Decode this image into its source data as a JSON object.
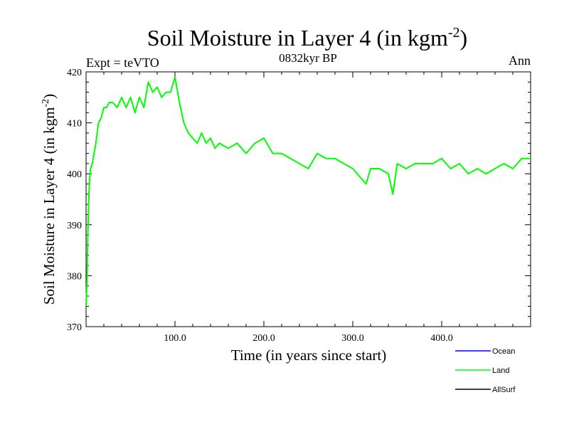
{
  "chart_data": {
    "type": "line",
    "title": "Soil Moisture in Layer 4 (in kgm",
    "title_sup": "-2",
    "title_close": ")",
    "subtitle": "0832kyr BP",
    "left_label": "Expt = teVTO",
    "right_label": "Ann",
    "xlabel": "Time (in years since start)",
    "ylabel": "Soil Moisture in Layer 4 (in kgm",
    "ylabel_sup": "-2",
    "ylabel_close": ")",
    "xlim": [
      0,
      500
    ],
    "ylim": [
      370,
      420
    ],
    "x_ticks": [
      100,
      200,
      300,
      400
    ],
    "x_tick_labels": [
      "100.0",
      "200.0",
      "300.0",
      "400.0"
    ],
    "y_ticks": [
      370,
      380,
      390,
      400,
      410,
      420
    ],
    "y_tick_labels": [
      "370",
      "380",
      "390",
      "400",
      "410",
      "420"
    ],
    "legend": [
      {
        "name": "Ocean",
        "color": "#0000ff"
      },
      {
        "name": "Land",
        "color": "#00ff00"
      },
      {
        "name": "AllSurf",
        "color": "#000000"
      }
    ],
    "series": [
      {
        "name": "Land",
        "color": "#00ff00",
        "x": [
          0,
          1,
          2,
          3,
          4,
          5,
          7,
          9,
          11,
          14,
          17,
          20,
          23,
          26,
          30,
          35,
          40,
          45,
          50,
          55,
          60,
          65,
          70,
          75,
          80,
          85,
          90,
          95,
          100,
          105,
          110,
          115,
          120,
          125,
          130,
          135,
          140,
          145,
          150,
          160,
          170,
          180,
          190,
          200,
          210,
          220,
          230,
          240,
          250,
          260,
          270,
          280,
          290,
          300,
          310,
          315,
          320,
          330,
          340,
          345,
          350,
          360,
          370,
          380,
          390,
          400,
          410,
          420,
          430,
          440,
          450,
          460,
          470,
          480,
          490,
          499
        ],
        "values": [
          374,
          379,
          388,
          395,
          399,
          401,
          402,
          404,
          406,
          410,
          411,
          413,
          413,
          414,
          414,
          413,
          415,
          413,
          415,
          412,
          415,
          413,
          418,
          416,
          417,
          415,
          416,
          416,
          419,
          414,
          410,
          408,
          407,
          406,
          408,
          406,
          407,
          405,
          406,
          405,
          406,
          404,
          406,
          407,
          404,
          404,
          403,
          402,
          401,
          404,
          403,
          403,
          402,
          401,
          399,
          398,
          401,
          401,
          400,
          396,
          402,
          401,
          402,
          402,
          402,
          403,
          401,
          402,
          400,
          401,
          400,
          401,
          402,
          401,
          403,
          403
        ]
      }
    ]
  }
}
